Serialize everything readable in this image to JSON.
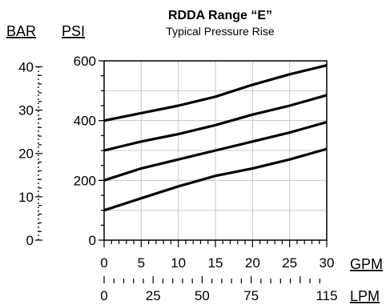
{
  "chart_data": {
    "type": "line",
    "title": "RDDA Range “E”",
    "subtitle": "Typical Pressure Rise",
    "x_units": [
      "GPM",
      "LPM"
    ],
    "y_units": [
      "BAR",
      "PSI"
    ],
    "xlim": [
      0,
      30
    ],
    "ylim": [
      0,
      600
    ],
    "x_ticks_gpm": [
      0,
      5,
      10,
      15,
      20,
      25,
      30
    ],
    "x_ticks_lpm": [
      0,
      25,
      50,
      75,
      115
    ],
    "y_ticks_psi": [
      0,
      200,
      400,
      600
    ],
    "y_ticks_bar": [
      0,
      10,
      20,
      30,
      40
    ],
    "grid": true,
    "series": [
      {
        "values": [
          [
            0,
            100
          ],
          [
            5,
            140
          ],
          [
            10,
            180
          ],
          [
            15,
            215
          ],
          [
            20,
            240
          ],
          [
            25,
            270
          ],
          [
            30,
            305
          ]
        ]
      },
      {
        "values": [
          [
            0,
            200
          ],
          [
            5,
            240
          ],
          [
            10,
            270
          ],
          [
            15,
            300
          ],
          [
            20,
            330
          ],
          [
            25,
            360
          ],
          [
            30,
            395
          ]
        ]
      },
      {
        "values": [
          [
            0,
            300
          ],
          [
            5,
            330
          ],
          [
            10,
            355
          ],
          [
            15,
            385
          ],
          [
            20,
            420
          ],
          [
            25,
            450
          ],
          [
            30,
            485
          ]
        ]
      },
      {
        "values": [
          [
            0,
            400
          ],
          [
            5,
            425
          ],
          [
            10,
            450
          ],
          [
            15,
            480
          ],
          [
            20,
            520
          ],
          [
            25,
            555
          ],
          [
            30,
            585
          ]
        ]
      }
    ]
  }
}
